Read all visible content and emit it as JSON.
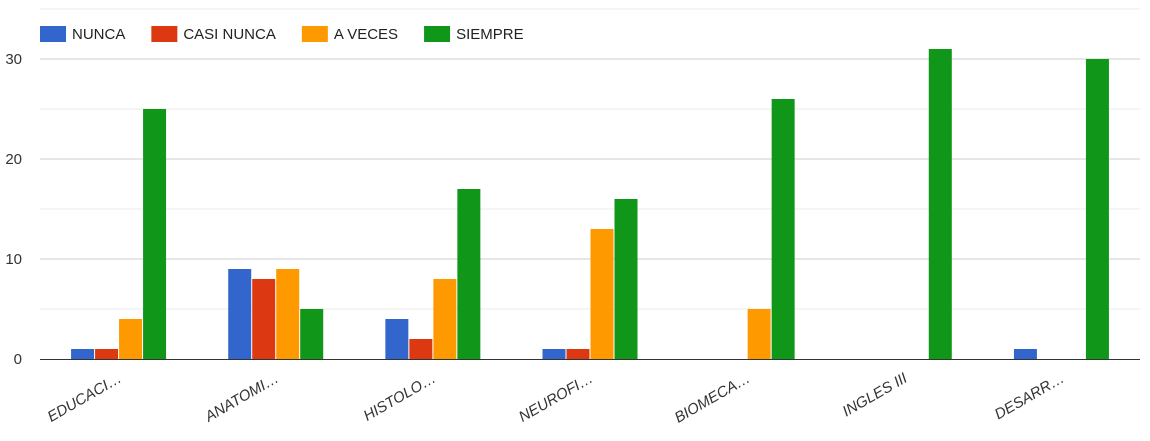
{
  "chart_data": {
    "type": "bar",
    "categories": [
      "EDUCACI…",
      "ANATOMI…",
      "HISTOLO…",
      "NEUROFI…",
      "BIOMECA…",
      "INGLES III",
      "DESARR…"
    ],
    "series": [
      {
        "name": "NUNCA",
        "color": "#3366cc",
        "values": [
          1,
          9,
          4,
          1,
          0,
          0,
          1
        ]
      },
      {
        "name": "CASI NUNCA",
        "color": "#dc3912",
        "values": [
          1,
          8,
          2,
          1,
          0,
          0,
          0
        ]
      },
      {
        "name": "A VECES",
        "color": "#ff9900",
        "values": [
          4,
          9,
          8,
          13,
          5,
          0,
          0
        ]
      },
      {
        "name": "SIEMPRE",
        "color": "#109618",
        "values": [
          25,
          5,
          17,
          16,
          26,
          31,
          30
        ]
      }
    ],
    "yticks": [
      0,
      10,
      20,
      30
    ],
    "ylim": [
      0,
      35
    ],
    "grid": true,
    "legend_position": "top-left"
  }
}
